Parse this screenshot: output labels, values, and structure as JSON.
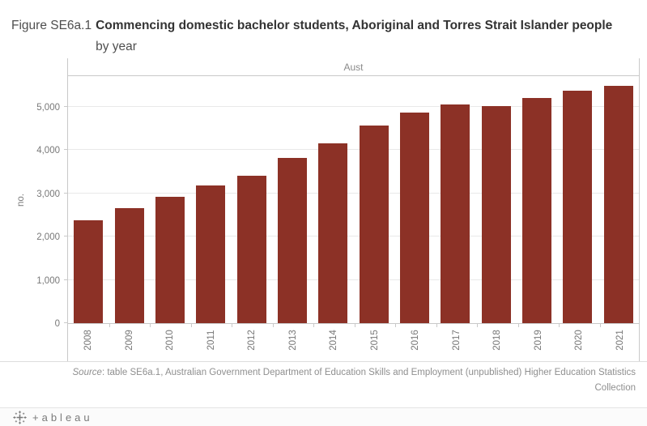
{
  "title": {
    "figure_label": "Figure SE6a.1",
    "main": "Commencing domestic bachelor students, Aboriginal and Torres Strait Islander people",
    "line2": "by year"
  },
  "chart_data": {
    "type": "bar",
    "panel_label": "Aust",
    "ylabel": "no.",
    "categories": [
      "2008",
      "2009",
      "2010",
      "2011",
      "2012",
      "2013",
      "2014",
      "2015",
      "2016",
      "2017",
      "2018",
      "2019",
      "2020",
      "2021"
    ],
    "values": [
      2370,
      2660,
      2930,
      3180,
      3400,
      3820,
      4150,
      4570,
      4870,
      5060,
      5020,
      5210,
      5370,
      5480
    ],
    "y_ticks": [
      0,
      1000,
      2000,
      3000,
      4000,
      5000
    ],
    "y_tick_labels": [
      "0",
      "1,000",
      "2,000",
      "3,000",
      "4,000",
      "5,000"
    ],
    "ylim": [
      0,
      5730
    ],
    "bar_color": "#8C3126",
    "grid": true,
    "legend": "none",
    "x_label_rotation": -90
  },
  "source": {
    "label": "Source",
    "text": ": table SE6a.1, Australian Government Department of Education Skills and Employment (unpublished) Higher Education Statistics",
    "text2": "Collection"
  },
  "footer": {
    "logo_word": "+ableau"
  }
}
